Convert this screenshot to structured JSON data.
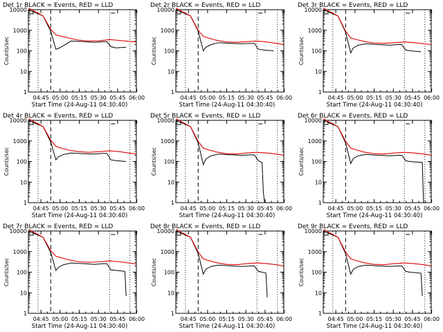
{
  "chart_data": [
    {
      "type": "line",
      "title": "Det 1r BLACK = Events, RED = LLD",
      "xlabel": "Start Time (24-Aug-11 04:30:40)",
      "ylabel": "Counts/sec",
      "x_ticks": [
        "04:45",
        "05:00",
        "05:15",
        "05:30",
        "05:45",
        "06:00"
      ],
      "y_ticks": [
        "1",
        "10",
        "100",
        "1000",
        "10000"
      ],
      "ylim": [
        1,
        10000
      ],
      "xlim_minutes": [
        4.5,
        89
      ],
      "series": [
        {
          "name": "Events",
          "color": "#000000",
          "x": [
            4.5,
            16,
            22,
            26,
            28,
            32,
            38,
            48,
            56,
            63,
            66,
            69,
            73,
            81
          ],
          "y": [
            10000,
            5000,
            900,
            120,
            130,
            180,
            300,
            280,
            260,
            280,
            280,
            160,
            140,
            150
          ]
        },
        {
          "name": "LLD",
          "color": "#dd0000",
          "x": [
            4.5,
            16,
            22,
            26,
            30,
            36,
            44,
            52,
            60,
            68,
            76,
            83,
            89
          ],
          "y": [
            12000,
            5000,
            1100,
            600,
            520,
            420,
            330,
            300,
            310,
            350,
            320,
            290,
            270
          ]
        }
      ]
    },
    {
      "type": "line",
      "title": "Det 2r BLACK = Events, RED = LLD",
      "xlabel": "Start Time (24-Aug-11 04:30:40)",
      "ylabel": "Counts/sec",
      "x_ticks": [
        "04:45",
        "05:00",
        "05:15",
        "05:30",
        "05:45",
        "06:00"
      ],
      "y_ticks": [
        "1",
        "10",
        "100",
        "1000",
        "10000"
      ],
      "ylim": [
        1,
        10000
      ],
      "xlim_minutes": [
        4.5,
        89
      ],
      "series": [
        {
          "name": "Events",
          "color": "#000000",
          "x": [
            4.5,
            16,
            22,
            26,
            28,
            32,
            38,
            48,
            56,
            63,
            66,
            69,
            73,
            81
          ],
          "y": [
            10000,
            5000,
            900,
            100,
            150,
            200,
            250,
            230,
            220,
            230,
            230,
            120,
            110,
            100
          ]
        },
        {
          "name": "LLD",
          "color": "#dd0000",
          "x": [
            4.5,
            16,
            22,
            26,
            30,
            36,
            44,
            52,
            60,
            68,
            76,
            83,
            89
          ],
          "y": [
            12000,
            5000,
            1000,
            500,
            420,
            330,
            270,
            260,
            280,
            300,
            270,
            230,
            200
          ]
        }
      ]
    },
    {
      "type": "line",
      "title": "Det 3r BLACK = Events, RED = LLD",
      "xlabel": "Start Time (24-Aug-11 04:30:40)",
      "ylabel": "Counts/sec",
      "x_ticks": [
        "04:45",
        "05:00",
        "05:15",
        "05:30",
        "05:45",
        "06:00"
      ],
      "y_ticks": [
        "1",
        "10",
        "100",
        "1000",
        "10000"
      ],
      "ylim": [
        1,
        10000
      ],
      "xlim_minutes": [
        4.5,
        89
      ],
      "series": [
        {
          "name": "Events",
          "color": "#000000",
          "x": [
            4.5,
            16,
            22,
            26,
            28,
            32,
            38,
            48,
            56,
            63,
            66,
            69,
            73,
            81
          ],
          "y": [
            10000,
            5000,
            800,
            80,
            140,
            190,
            220,
            200,
            190,
            200,
            200,
            110,
            100,
            90
          ]
        },
        {
          "name": "LLD",
          "color": "#dd0000",
          "x": [
            4.5,
            16,
            22,
            26,
            30,
            36,
            44,
            52,
            60,
            68,
            76,
            83,
            89
          ],
          "y": [
            12000,
            5000,
            900,
            420,
            360,
            290,
            240,
            230,
            250,
            270,
            250,
            220,
            200
          ]
        }
      ]
    },
    {
      "type": "line",
      "title": "Det 4r BLACK = Events, RED = LLD",
      "xlabel": "Start Time (24-Aug-11 04:30:40)",
      "ylabel": "Counts/sec",
      "x_ticks": [
        "04:45",
        "05:00",
        "05:15",
        "05:30",
        "05:45",
        "06:00"
      ],
      "y_ticks": [
        "1",
        "10",
        "100",
        "1000",
        "10000"
      ],
      "ylim": [
        1,
        10000
      ],
      "xlim_minutes": [
        4.5,
        89
      ],
      "series": [
        {
          "name": "Events",
          "color": "#000000",
          "x": [
            4.5,
            16,
            22,
            26,
            28,
            32,
            38,
            48,
            56,
            63,
            66,
            69,
            73,
            81
          ],
          "y": [
            10000,
            5000,
            900,
            120,
            170,
            220,
            260,
            240,
            230,
            250,
            250,
            120,
            110,
            100
          ]
        },
        {
          "name": "LLD",
          "color": "#dd0000",
          "x": [
            4.5,
            16,
            22,
            26,
            30,
            36,
            44,
            52,
            60,
            68,
            76,
            83,
            89
          ],
          "y": [
            12000,
            5000,
            1100,
            550,
            450,
            360,
            300,
            280,
            300,
            330,
            300,
            260,
            230
          ]
        }
      ]
    },
    {
      "type": "line",
      "title": "Det 5r BLACK = Events, RED = LLD",
      "xlabel": "Start Time (24-Aug-11 04:30:40)",
      "ylabel": "Counts/sec",
      "x_ticks": [
        "04:45",
        "05:00",
        "05:15",
        "05:30",
        "05:45",
        "06:00"
      ],
      "y_ticks": [
        "1",
        "10",
        "100",
        "1000",
        "10000"
      ],
      "ylim": [
        1,
        10000
      ],
      "xlim_minutes": [
        4.5,
        89
      ],
      "series": [
        {
          "name": "Events",
          "color": "#000000",
          "x": [
            4.5,
            16,
            22,
            26,
            28,
            32,
            38,
            48,
            56,
            63,
            66,
            69,
            72,
            73,
            74
          ],
          "y": [
            10000,
            5000,
            800,
            70,
            130,
            190,
            230,
            210,
            200,
            210,
            210,
            110,
            90,
            3,
            1
          ]
        },
        {
          "name": "LLD",
          "color": "#dd0000",
          "x": [
            4.5,
            16,
            22,
            26,
            30,
            36,
            44,
            52,
            60,
            68,
            76,
            83,
            89
          ],
          "y": [
            12000,
            5000,
            950,
            450,
            370,
            290,
            240,
            230,
            260,
            280,
            260,
            230,
            200
          ]
        }
      ]
    },
    {
      "type": "line",
      "title": "Det 6r BLACK = Events, RED = LLD",
      "xlabel": "Start Time (24-Aug-11 04:30:40)",
      "ylabel": "Counts/sec",
      "x_ticks": [
        "04:45",
        "05:00",
        "05:15",
        "05:30",
        "05:45",
        "06:00"
      ],
      "y_ticks": [
        "1",
        "10",
        "100",
        "1000",
        "10000"
      ],
      "ylim": [
        1,
        10000
      ],
      "xlim_minutes": [
        4.5,
        89
      ],
      "series": [
        {
          "name": "Events",
          "color": "#000000",
          "x": [
            4.5,
            16,
            22,
            26,
            28,
            32,
            38,
            48,
            56,
            63,
            66,
            69,
            72,
            82,
            83
          ],
          "y": [
            10000,
            5000,
            800,
            80,
            140,
            190,
            220,
            200,
            190,
            200,
            200,
            110,
            100,
            90,
            1
          ]
        },
        {
          "name": "LLD",
          "color": "#dd0000",
          "x": [
            4.5,
            16,
            22,
            26,
            30,
            36,
            44,
            52,
            60,
            68,
            76,
            83,
            89
          ],
          "y": [
            12000,
            5000,
            950,
            450,
            370,
            290,
            240,
            230,
            260,
            280,
            260,
            230,
            200
          ]
        }
      ]
    },
    {
      "type": "line",
      "title": "Det 7r BLACK = Events, RED = LLD",
      "xlabel": "Start Time (24-Aug-11 04:30:40)",
      "ylabel": "Counts/sec",
      "x_ticks": [
        "04:45",
        "05:00",
        "05:15",
        "05:30",
        "05:45",
        "06:00"
      ],
      "y_ticks": [
        "1",
        "10",
        "100",
        "1000",
        "10000"
      ],
      "ylim": [
        1,
        10000
      ],
      "xlim_minutes": [
        4.5,
        89
      ],
      "series": [
        {
          "name": "Events",
          "color": "#000000",
          "x": [
            4.5,
            16,
            22,
            26,
            28,
            32,
            38,
            48,
            56,
            63,
            66,
            69,
            74,
            80,
            81
          ],
          "y": [
            10000,
            5000,
            900,
            120,
            170,
            230,
            280,
            260,
            240,
            260,
            260,
            130,
            120,
            110,
            7
          ]
        },
        {
          "name": "LLD",
          "color": "#dd0000",
          "x": [
            4.5,
            16,
            22,
            26,
            30,
            36,
            44,
            52,
            60,
            68,
            76,
            83,
            89
          ],
          "y": [
            12000,
            5000,
            1100,
            600,
            500,
            400,
            320,
            300,
            320,
            350,
            320,
            280,
            250
          ]
        }
      ]
    },
    {
      "type": "line",
      "title": "Det 8r BLACK = Events, RED = LLD",
      "xlabel": "Start Time (24-Aug-11 04:30:40)",
      "ylabel": "Counts/sec",
      "x_ticks": [
        "04:45",
        "05:00",
        "05:15",
        "05:30",
        "05:45",
        "06:00"
      ],
      "y_ticks": [
        "1",
        "10",
        "100",
        "1000",
        "10000"
      ],
      "ylim": [
        1,
        10000
      ],
      "xlim_minutes": [
        4.5,
        89
      ],
      "series": [
        {
          "name": "Events",
          "color": "#000000",
          "x": [
            4.5,
            16,
            22,
            26,
            28,
            32,
            38,
            48,
            56,
            63,
            66,
            69,
            72,
            75,
            76
          ],
          "y": [
            10000,
            5000,
            800,
            80,
            140,
            190,
            220,
            200,
            190,
            200,
            200,
            110,
            100,
            90,
            6
          ]
        },
        {
          "name": "LLD",
          "color": "#dd0000",
          "x": [
            4.5,
            16,
            22,
            26,
            30,
            36,
            44,
            52,
            60,
            68,
            76,
            83,
            89
          ],
          "y": [
            12000,
            5000,
            950,
            450,
            370,
            290,
            240,
            230,
            260,
            280,
            260,
            230,
            200
          ]
        }
      ]
    },
    {
      "type": "line",
      "title": "Det 9r BLACK = Events, RED = LLD",
      "xlabel": "Start Time (24-Aug-11 04:30:40)",
      "ylabel": "Counts/sec",
      "x_ticks": [
        "04:45",
        "05:00",
        "05:15",
        "05:30",
        "05:45",
        "06:00"
      ],
      "y_ticks": [
        "1",
        "10",
        "100",
        "1000",
        "10000"
      ],
      "ylim": [
        1,
        10000
      ],
      "xlim_minutes": [
        4.5,
        89
      ],
      "series": [
        {
          "name": "Events",
          "color": "#000000",
          "x": [
            4.5,
            16,
            22,
            26,
            28,
            32,
            38,
            48,
            56,
            63,
            66,
            69,
            72,
            81,
            82
          ],
          "y": [
            10000,
            5000,
            800,
            80,
            140,
            190,
            220,
            200,
            190,
            200,
            200,
            110,
            100,
            90,
            7
          ]
        },
        {
          "name": "LLD",
          "color": "#dd0000",
          "x": [
            4.5,
            16,
            22,
            26,
            30,
            36,
            44,
            52,
            60,
            68,
            76,
            83,
            89
          ],
          "y": [
            12000,
            5000,
            950,
            450,
            370,
            290,
            240,
            230,
            260,
            280,
            260,
            230,
            200
          ]
        }
      ]
    }
  ],
  "markers": {
    "dotted_lines_minutes": [
      12,
      68,
      84
    ],
    "dashed_line_minutes": 22
  }
}
